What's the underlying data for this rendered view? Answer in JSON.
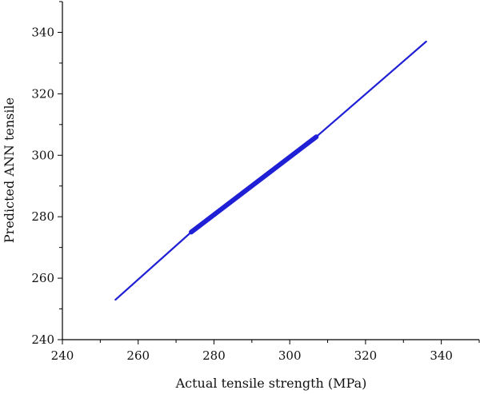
{
  "chart_data": {
    "type": "line",
    "title": "",
    "xlabel": "Actual tensile strength (MPa)",
    "ylabel": "Predicted ANN tensile",
    "xlim": [
      240,
      350
    ],
    "ylim": [
      240,
      350
    ],
    "xticks": [
      "240",
      "260",
      "280",
      "300",
      "320",
      "340"
    ],
    "yticks": [
      "240",
      "260",
      "280",
      "300",
      "320",
      "340"
    ],
    "grid": false,
    "legend": "none",
    "series": [
      {
        "color": "#1f1fd6",
        "x": [
          254,
          274,
          307,
          336
        ],
        "y": [
          253,
          275,
          306,
          337
        ]
      }
    ]
  }
}
